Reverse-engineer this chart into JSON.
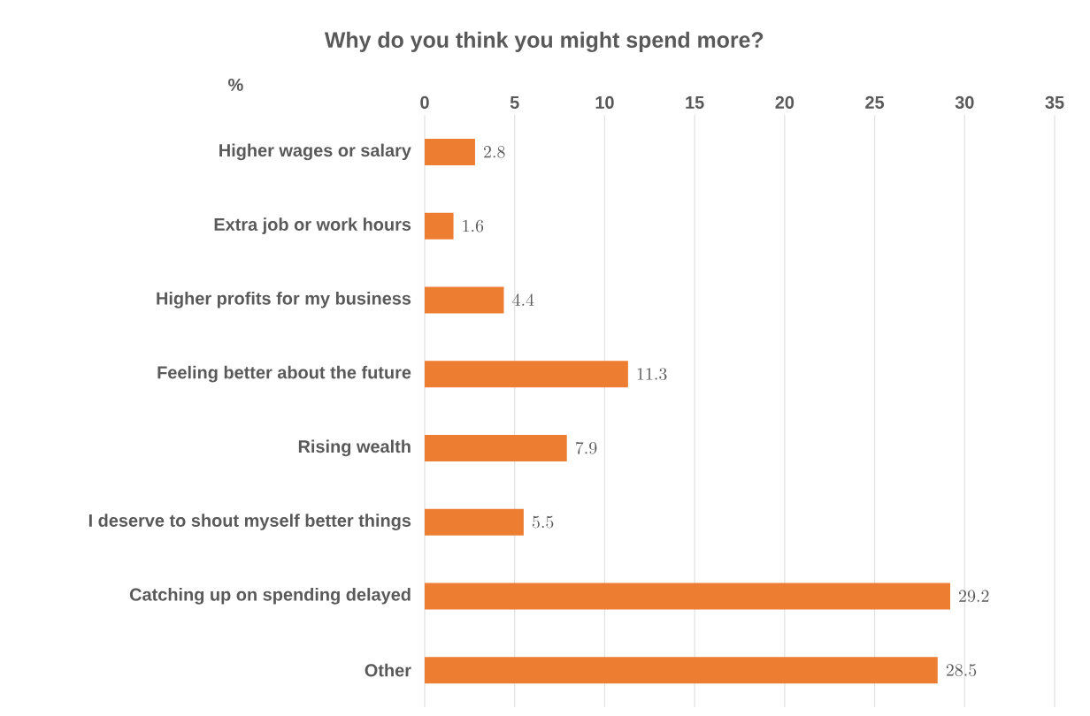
{
  "chart_data": {
    "type": "bar",
    "orientation": "horizontal",
    "title": "Why do you think you might spend more?",
    "xlabel": "%",
    "categories": [
      "Higher wages or salary",
      "Extra job or work hours",
      "Higher profits for my business",
      "Feeling better about the future",
      "Rising wealth",
      "I deserve to shout myself better things",
      "Catching up on spending delayed",
      "Other"
    ],
    "values": [
      2.8,
      1.6,
      4.4,
      11.3,
      7.9,
      5.5,
      29.2,
      28.5
    ],
    "color": "#ed7d31",
    "data_labels": true,
    "grid": "x",
    "xlim": [
      0,
      35
    ],
    "xticks": [
      0,
      5,
      10,
      15,
      20,
      25,
      30,
      35
    ]
  }
}
